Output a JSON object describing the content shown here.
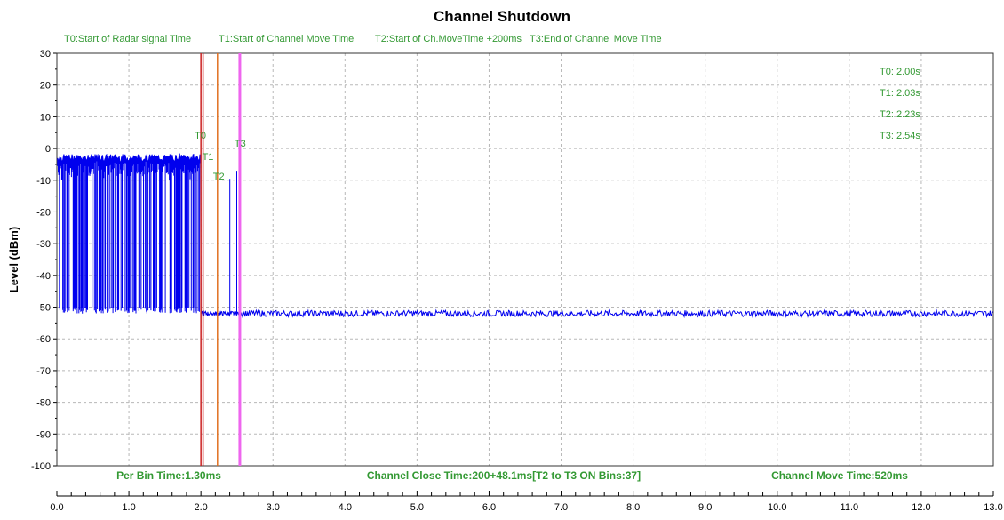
{
  "chart_data": {
    "type": "line",
    "title": "Channel Shutdown",
    "ylabel": "Level (dBm)",
    "xlabel": "",
    "xlim": [
      0,
      13
    ],
    "ylim": [
      -100,
      30
    ],
    "x_ticks": [
      "0.0",
      "1.0",
      "2.0",
      "3.0",
      "4.0",
      "5.0",
      "6.0",
      "7.0",
      "8.0",
      "9.0",
      "10.0",
      "11.0",
      "12.0",
      "13.0"
    ],
    "y_ticks": [
      "30",
      "20",
      "10",
      "0",
      "-10",
      "-20",
      "-30",
      "-40",
      "-50",
      "-60",
      "-70",
      "-80",
      "-90",
      "-100"
    ],
    "grid": true,
    "legend_items": [
      "T0:Start of Radar signal Time",
      "T1:Start of Channel Move Time",
      "T2:Start of Ch.MoveTime +200ms",
      "T3:End of Channel Move Time"
    ],
    "markers": [
      {
        "label": "T0",
        "x": 2.0,
        "color": "#cc2222"
      },
      {
        "label": "T1",
        "x": 2.03,
        "color": "#cc2222"
      },
      {
        "label": "T2",
        "x": 2.23,
        "color": "#e07020"
      },
      {
        "label": "T3",
        "x": 2.54,
        "color": "#ee66ee"
      }
    ],
    "marker_values": [
      "T0: 2.00s",
      "T1: 2.03s",
      "T2: 2.23s",
      "T3: 2.54s"
    ],
    "annotations": {
      "per_bin": "Per Bin Time:1.30ms",
      "close_time": "Channel Close Time:200+48.1ms[T2 to T3 ON Bins:37]",
      "move_time": "Channel Move Time:520ms"
    },
    "series": [
      {
        "color": "#0000ee",
        "segments": [
          {
            "x_start": 0.0,
            "x_end": 2.0,
            "high_level": -3,
            "low_level": -52
          },
          {
            "x_start": 2.0,
            "x_end": 2.54,
            "level": -52,
            "bursts": [
              2.4,
              2.5,
              2.54
            ],
            "burst_level": -7
          },
          {
            "x_start": 2.54,
            "x_end": 13.0,
            "level": -52,
            "noise": 1
          }
        ]
      }
    ]
  }
}
